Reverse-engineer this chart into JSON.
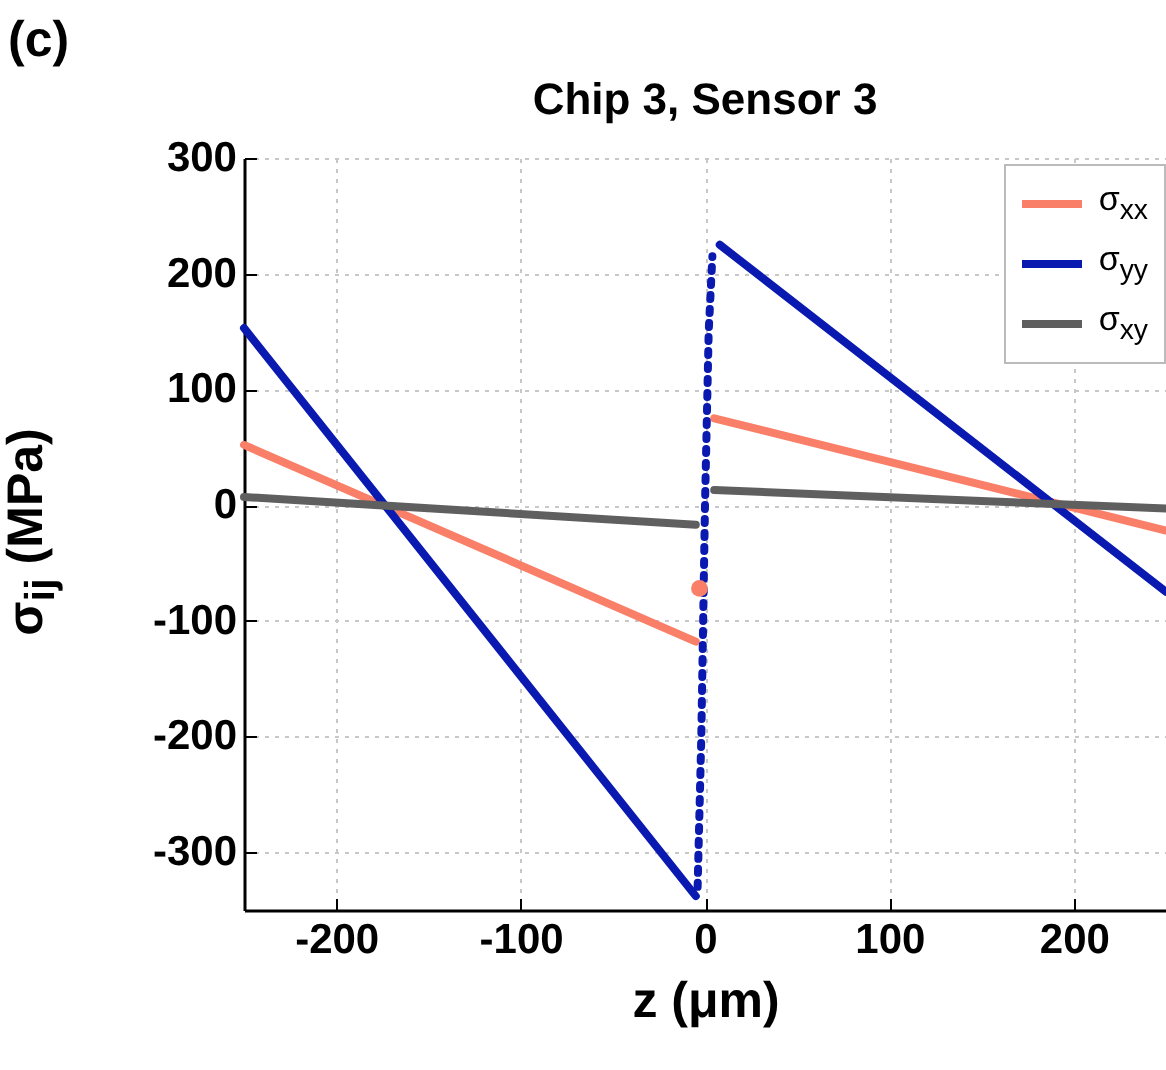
{
  "chart_data": {
    "type": "line",
    "title": "Chip 3, Sensor 3",
    "xlabel": "z (μm)",
    "ylabel": "σ$_{ij}$ (MPa)",
    "annotations": [
      "(c)"
    ],
    "xlim": [
      -250,
      250
    ],
    "xticks": [
      -200,
      -100,
      0,
      100,
      200
    ],
    "ylim": [
      -350,
      300
    ],
    "yticks": [
      -300,
      -200,
      -100,
      0,
      100,
      200,
      300
    ],
    "grid": true,
    "legend": "top right",
    "line_style": "solid",
    "marker": "none",
    "series": [
      {
        "name": "σ$_{xx}$",
        "color": "#fa7f68",
        "x": [
          -250,
          -5,
          null,
          5,
          250
        ],
        "values": [
          52,
          -118,
          null,
          75,
          -22
        ]
      },
      {
        "name": "σ$_{yy}$",
        "color": "#0a1ab0",
        "x": [
          -250,
          -5,
          null,
          8,
          250
        ],
        "values": [
          153,
          -338,
          null,
          225,
          -75
        ]
      },
      {
        "name": "σ$_{xy}$",
        "color": "#5f5f5f",
        "x": [
          -250,
          -5,
          null,
          5,
          250
        ],
        "values": [
          7,
          -17,
          null,
          13,
          -3
        ]
      },
      {
        "color": "#0a1ab0",
        "line_style": "dotted",
        "x": [
          -4,
          -2,
          0,
          2,
          4
        ],
        "values": [
          -330,
          -200,
          0,
          150,
          215
        ]
      },
      {
        "color": "#fa7f68",
        "type": "scatter",
        "marker": "circle",
        "x": [
          -3
        ],
        "values": [
          -72
        ]
      }
    ]
  }
}
